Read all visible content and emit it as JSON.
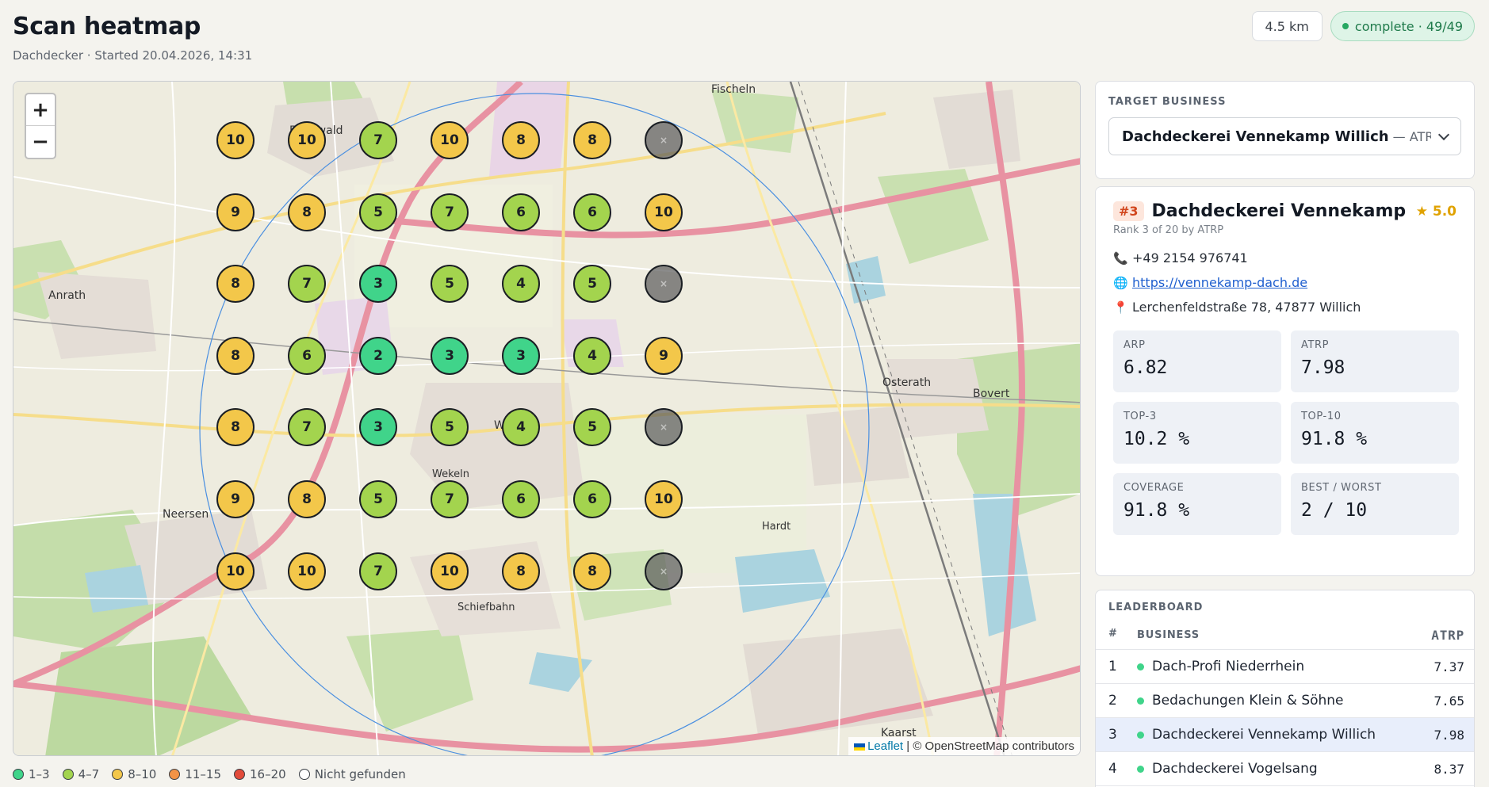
{
  "header": {
    "title": "Scan heatmap",
    "subtitle": "Dachdecker · Started 20.04.2026, 14:31",
    "radius": "4.5 km",
    "status": "complete · 49/49"
  },
  "map": {
    "attribution_leaflet": "Leaflet",
    "attribution_rest": " | © OpenStreetMap contributors",
    "zoom_in": "+",
    "zoom_out": "−",
    "place_labels": [
      "Fischeln",
      "Forstwald",
      "Anrath",
      "Neersen",
      "Willich",
      "Wekeln",
      "Osterath",
      "Bovert",
      "Kaarst",
      "Hardt",
      "Schiefbahn"
    ],
    "grid_ranks": [
      [
        "10",
        "10",
        "7",
        "10",
        "8",
        "8",
        "nf"
      ],
      [
        "9",
        "8",
        "5",
        "7",
        "6",
        "6",
        "10"
      ],
      [
        "8",
        "7",
        "3",
        "5",
        "4",
        "5",
        "nf"
      ],
      [
        "8",
        "6",
        "2",
        "3",
        "3",
        "4",
        "9"
      ],
      [
        "8",
        "7",
        "3",
        "5",
        "4",
        "5",
        "nf"
      ],
      [
        "9",
        "8",
        "5",
        "7",
        "6",
        "6",
        "10"
      ],
      [
        "10",
        "10",
        "7",
        "10",
        "8",
        "8",
        "nf"
      ]
    ]
  },
  "legend": [
    {
      "label": "1–3",
      "color": "#40d48a"
    },
    {
      "label": "4–7",
      "color": "#a3d44e"
    },
    {
      "label": "8–10",
      "color": "#f3c74a"
    },
    {
      "label": "11–15",
      "color": "#f29346"
    },
    {
      "label": "16–20",
      "color": "#e24b3a"
    },
    {
      "label": "Nicht gefunden",
      "color": "#ffffff"
    }
  ],
  "target": {
    "section_label": "TARGET BUSINESS",
    "selected_name": "Dachdeckerei Vennekamp Willich",
    "selected_sub": " — ATRP..."
  },
  "business": {
    "rank_badge": "#3",
    "name": "Dachdeckerei Vennekamp Wil...",
    "rating": "★ 5.0",
    "rank_note": "Rank 3 of 20 by ATRP",
    "phone": "+49 2154 976741",
    "website": "https://vennekamp-dach.de",
    "address": "Lerchenfeldstraße 78, 47877 Willich",
    "stats": [
      {
        "label": "ARP",
        "value": "6.82"
      },
      {
        "label": "ATRP",
        "value": "7.98"
      },
      {
        "label": "TOP-3",
        "value": "10.2 %"
      },
      {
        "label": "TOP-10",
        "value": "91.8 %"
      },
      {
        "label": "COVERAGE",
        "value": "91.8 %"
      },
      {
        "label": "BEST / WORST",
        "value": "2 / 10"
      }
    ]
  },
  "leaderboard": {
    "section_label": "LEADERBOARD",
    "col_rank": "#",
    "col_business": "BUSINESS",
    "col_atrp": "ATRP",
    "rows": [
      {
        "rank": "1",
        "name": "Dach-Profi Niederrhein",
        "atrp": "7.37"
      },
      {
        "rank": "2",
        "name": "Bedachungen Klein & Söhne",
        "atrp": "7.65"
      },
      {
        "rank": "3",
        "name": "Dachdeckerei Vennekamp Willich",
        "atrp": "7.98"
      },
      {
        "rank": "4",
        "name": "Dachdeckerei Vogelsang",
        "atrp": "8.37"
      }
    ]
  }
}
